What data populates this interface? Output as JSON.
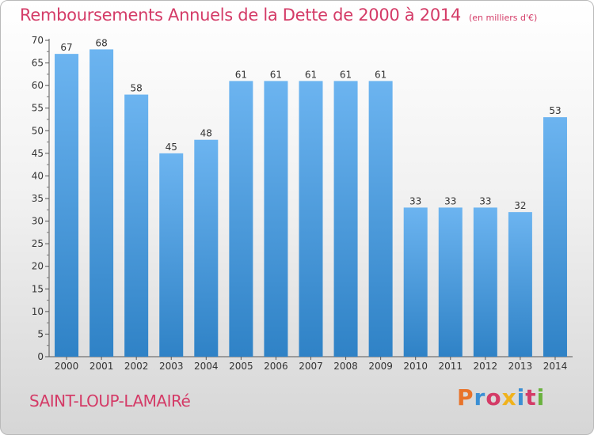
{
  "title": "Remboursements Annuels de la Dette de 2000 à 2014",
  "subtitle": "(en milliers d'€)",
  "footer": {
    "town": "SAINT-LOUP-LAMAIRé",
    "brand": "Proxiti",
    "brand_letter_colors": [
      "#e8732a",
      "#3b8fd4",
      "#d43b67",
      "#f0b21c",
      "#3b8fd4",
      "#d43b67",
      "#6ab23e"
    ]
  },
  "colors": {
    "title": "#d43b67",
    "bar_light": "#6cb4f0",
    "bar_dark": "#2f82c6"
  },
  "chart_data": {
    "type": "bar",
    "categories": [
      "2000",
      "2001",
      "2002",
      "2003",
      "2004",
      "2005",
      "2006",
      "2007",
      "2008",
      "2009",
      "2010",
      "2011",
      "2012",
      "2013",
      "2014"
    ],
    "values": [
      67,
      68,
      58,
      45,
      48,
      61,
      61,
      61,
      61,
      61,
      33,
      33,
      33,
      32,
      53
    ],
    "ylim": [
      0,
      70
    ],
    "yticks": [
      0,
      5,
      10,
      15,
      20,
      25,
      30,
      35,
      40,
      45,
      50,
      55,
      60,
      65,
      70
    ],
    "grid": false,
    "data_labels": true
  }
}
